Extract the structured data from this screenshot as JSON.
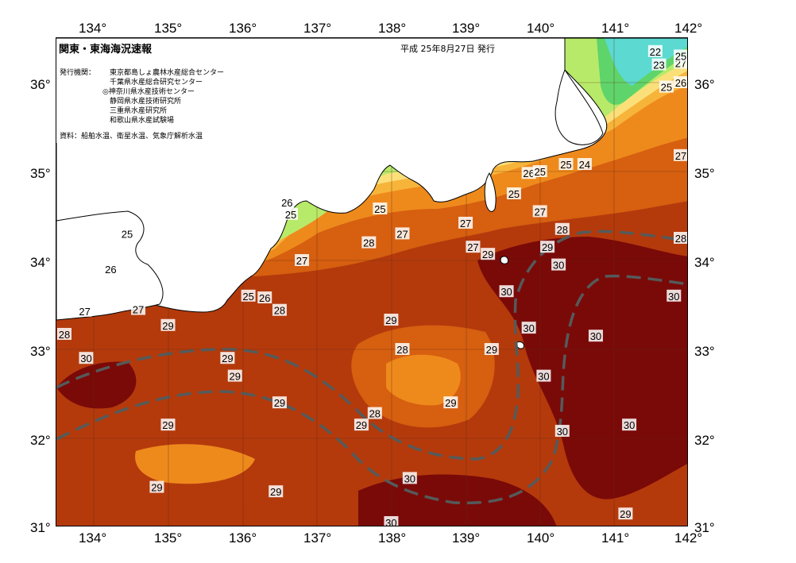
{
  "header": {
    "title": "関東・東海海況速報",
    "date": "平成 25年8月27日 発行",
    "issuers_label": "発行機関：",
    "issuers": [
      "東京都島しょ農林水産総合センター",
      "千葉県水産総合研究センター",
      "◎神奈川県水産技術センター",
      "静岡県水産技術研究所",
      "三重県水産研究所",
      "和歌山県水産試験場"
    ],
    "sources": "資料：船舶水温、衛星水温、気象庁解析水温"
  },
  "axes": {
    "lon_labels": [
      "134°",
      "135°",
      "136°",
      "137°",
      "138°",
      "139°",
      "140°",
      "141°",
      "142°"
    ],
    "lat_labels": [
      "36°",
      "35°",
      "34°",
      "33°",
      "32°",
      "31°"
    ]
  },
  "map": {
    "lon_range": [
      133.5,
      142.0
    ],
    "lat_range": [
      31.0,
      36.5
    ],
    "grid": true,
    "colors": {
      "c30": "#7a0a08",
      "c29": "#b43a0c",
      "c28": "#d65f10",
      "c27": "#ee8a1c",
      "c26": "#f7b43a",
      "c25": "#fbe07a",
      "c24": "#b8ea6a",
      "c23": "#5fd46a",
      "c22": "#5cd9d0",
      "land": "#ffffff",
      "kuroshio": "#555a5a"
    },
    "isotherm_labels": [
      {
        "text": "22",
        "lon": 141.55,
        "lat": 36.35
      },
      {
        "text": "23",
        "lon": 141.6,
        "lat": 36.2
      },
      {
        "text": "27",
        "lon": 141.95,
        "lat": 36.22
      },
      {
        "text": "25",
        "lon": 142.6,
        "lat": 36.3
      },
      {
        "text": "25",
        "lon": 141.7,
        "lat": 35.95
      },
      {
        "text": "26",
        "lon": 142.25,
        "lat": 36.0
      },
      {
        "text": "27",
        "lon": 141.9,
        "lat": 35.18
      },
      {
        "text": "26",
        "lon": 139.85,
        "lat": 34.98
      },
      {
        "text": "25",
        "lon": 140.0,
        "lat": 35.0
      },
      {
        "text": "25",
        "lon": 140.35,
        "lat": 35.08
      },
      {
        "text": "24",
        "lon": 140.6,
        "lat": 35.08
      },
      {
        "text": "25",
        "lon": 139.65,
        "lat": 34.75
      },
      {
        "text": "26",
        "lon": 136.6,
        "lat": 34.65
      },
      {
        "text": "25",
        "lon": 136.65,
        "lat": 34.52
      },
      {
        "text": "25",
        "lon": 137.85,
        "lat": 34.58
      },
      {
        "text": "27",
        "lon": 138.15,
        "lat": 34.3
      },
      {
        "text": "28",
        "lon": 137.7,
        "lat": 34.2
      },
      {
        "text": "27",
        "lon": 139.0,
        "lat": 34.42
      },
      {
        "text": "27",
        "lon": 140.0,
        "lat": 34.55
      },
      {
        "text": "28",
        "lon": 140.3,
        "lat": 34.35
      },
      {
        "text": "28",
        "lon": 142.55,
        "lat": 34.25
      },
      {
        "text": "27",
        "lon": 139.1,
        "lat": 34.15
      },
      {
        "text": "29",
        "lon": 139.3,
        "lat": 34.07
      },
      {
        "text": "29",
        "lon": 140.1,
        "lat": 34.15
      },
      {
        "text": "30",
        "lon": 140.25,
        "lat": 33.95
      },
      {
        "text": "25",
        "lon": 134.45,
        "lat": 34.3
      },
      {
        "text": "26",
        "lon": 134.23,
        "lat": 33.9
      },
      {
        "text": "27",
        "lon": 136.8,
        "lat": 34.0
      },
      {
        "text": "25",
        "lon": 136.08,
        "lat": 33.6
      },
      {
        "text": "26",
        "lon": 136.3,
        "lat": 33.58
      },
      {
        "text": "28",
        "lon": 136.5,
        "lat": 33.44
      },
      {
        "text": "27",
        "lon": 133.88,
        "lat": 33.43
      },
      {
        "text": "27",
        "lon": 134.6,
        "lat": 33.45
      },
      {
        "text": "28",
        "lon": 133.6,
        "lat": 33.17
      },
      {
        "text": "29",
        "lon": 135.0,
        "lat": 33.27
      },
      {
        "text": "29",
        "lon": 138.0,
        "lat": 33.33
      },
      {
        "text": "30",
        "lon": 139.55,
        "lat": 33.65
      },
      {
        "text": "30",
        "lon": 141.8,
        "lat": 33.6
      },
      {
        "text": "30",
        "lon": 139.85,
        "lat": 33.24
      },
      {
        "text": "30",
        "lon": 140.75,
        "lat": 33.15
      },
      {
        "text": "28",
        "lon": 138.15,
        "lat": 33.0
      },
      {
        "text": "29",
        "lon": 139.35,
        "lat": 33.0
      },
      {
        "text": "30",
        "lon": 133.9,
        "lat": 32.9
      },
      {
        "text": "29",
        "lon": 135.8,
        "lat": 32.9
      },
      {
        "text": "29",
        "lon": 135.9,
        "lat": 32.7
      },
      {
        "text": "30",
        "lon": 140.05,
        "lat": 32.7
      },
      {
        "text": "29",
        "lon": 136.5,
        "lat": 32.4
      },
      {
        "text": "29",
        "lon": 138.8,
        "lat": 32.4
      },
      {
        "text": "28",
        "lon": 137.78,
        "lat": 32.28
      },
      {
        "text": "29",
        "lon": 137.6,
        "lat": 32.15
      },
      {
        "text": "29",
        "lon": 135.0,
        "lat": 32.15
      },
      {
        "text": "30",
        "lon": 140.3,
        "lat": 32.08
      },
      {
        "text": "30",
        "lon": 141.2,
        "lat": 32.15
      },
      {
        "text": "30",
        "lon": 138.25,
        "lat": 31.55
      },
      {
        "text": "29",
        "lon": 134.85,
        "lat": 31.45
      },
      {
        "text": "29",
        "lon": 136.45,
        "lat": 31.4
      },
      {
        "text": "29",
        "lon": 141.15,
        "lat": 31.15
      },
      {
        "text": "30",
        "lon": 138.0,
        "lat": 31.05
      }
    ]
  }
}
